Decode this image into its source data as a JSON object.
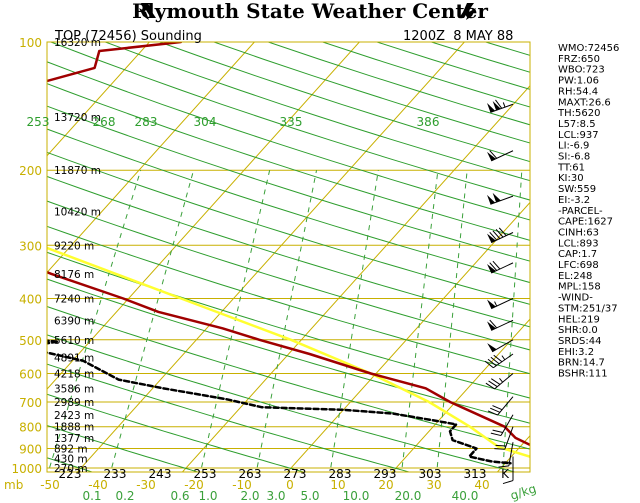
{
  "header": {
    "title": "Plymouth State Weather Center"
  },
  "chart_data": {
    "type": "skew-t",
    "title": "TOP (72456) Sounding",
    "datetime": "1200Z  8 MAY 88",
    "pressure_ticks": [
      {
        "p": 100,
        "label": "100"
      },
      {
        "p": 200,
        "label": "200"
      },
      {
        "p": 300,
        "label": "300"
      },
      {
        "p": 400,
        "label": "400"
      },
      {
        "p": 500,
        "label": "500"
      },
      {
        "p": 600,
        "label": "600"
      },
      {
        "p": 700,
        "label": "700"
      },
      {
        "p": 800,
        "label": "800"
      },
      {
        "p": 900,
        "label": "900"
      },
      {
        "p": 1000,
        "label": "1000"
      }
    ],
    "pressure_unit": "mb",
    "height_labels": [
      {
        "p": 100,
        "label": "16320 m"
      },
      {
        "p": 150,
        "label": "13720 m"
      },
      {
        "p": 200,
        "label": "11870 m"
      },
      {
        "p": 250,
        "label": "10420 m"
      },
      {
        "p": 300,
        "label": "9220 m"
      },
      {
        "p": 350,
        "label": "8176 m"
      },
      {
        "p": 400,
        "label": "7240 m"
      },
      {
        "p": 450,
        "label": "6390 m"
      },
      {
        "p": 500,
        "label": "5610 m"
      },
      {
        "p": 550,
        "label": "4891 m"
      },
      {
        "p": 600,
        "label": "4218 m"
      },
      {
        "p": 650,
        "label": "3586 m"
      },
      {
        "p": 700,
        "label": "2989 m"
      },
      {
        "p": 750,
        "label": "2423 m"
      },
      {
        "p": 800,
        "label": "1888 m"
      },
      {
        "p": 850,
        "label": "1377 m"
      },
      {
        "p": 900,
        "label": "892 m"
      },
      {
        "p": 950,
        "label": "430 m"
      },
      {
        "p": 1000,
        "label": "270 m"
      }
    ],
    "temp_c_labels": [
      "-50",
      "-40",
      "-30",
      "-20",
      "-10",
      "0",
      "10",
      "20",
      "30",
      "40"
    ],
    "temp_k_labels": [
      "223",
      "233",
      "243",
      "253",
      "263",
      "273",
      "283",
      "293",
      "303",
      "313",
      "K"
    ],
    "mixing_ratio_labels": [
      "0.1",
      "0.2",
      "0.6",
      "1.0",
      "2.0",
      "3.0",
      "5.0",
      "10.0",
      "20.0",
      "40.0"
    ],
    "mixing_ratio_unit": "g/kg",
    "theta_labels": [
      "253",
      "268",
      "283",
      "304",
      "335",
      "386"
    ],
    "temperature_profile": [
      {
        "p": 100,
        "t": -47
      },
      {
        "p": 105,
        "t": -54
      },
      {
        "p": 115,
        "t": -53
      },
      {
        "p": 125,
        "t": -57
      },
      {
        "p": 140,
        "t": -56
      },
      {
        "p": 150,
        "t": -62
      },
      {
        "p": 158,
        "t": -64
      },
      {
        "p": 168,
        "t": -64
      },
      {
        "p": 185,
        "t": -66
      },
      {
        "p": 200,
        "t": -64
      },
      {
        "p": 230,
        "t": -61
      },
      {
        "p": 260,
        "t": -57
      },
      {
        "p": 300,
        "t": -49
      },
      {
        "p": 350,
        "t": -39.5
      },
      {
        "p": 400,
        "t": -30.5
      },
      {
        "p": 430,
        "t": -26
      },
      {
        "p": 470,
        "t": -18.5
      },
      {
        "p": 500,
        "t": -14
      },
      {
        "p": 540,
        "t": -8
      },
      {
        "p": 600,
        "t": -0.5
      },
      {
        "p": 650,
        "t": 6
      },
      {
        "p": 700,
        "t": 9.5
      },
      {
        "p": 760,
        "t": 14
      },
      {
        "p": 800,
        "t": 16.8
      },
      {
        "p": 850,
        "t": 18.8
      },
      {
        "p": 900,
        "t": 21.8
      },
      {
        "p": 950,
        "t": 24.2
      },
      {
        "p": 975,
        "t": 24.5
      }
    ],
    "dewpoint_profile": [
      {
        "p": 355,
        "t": -69
      },
      {
        "p": 380,
        "t": -65
      },
      {
        "p": 410,
        "t": -56
      },
      {
        "p": 430,
        "t": -52
      },
      {
        "p": 445,
        "t": -44
      },
      {
        "p": 460,
        "t": -39
      },
      {
        "p": 470,
        "t": -42
      },
      {
        "p": 480,
        "t": -37
      },
      {
        "p": 490,
        "t": -41
      },
      {
        "p": 505,
        "t": -33
      },
      {
        "p": 520,
        "t": -36
      },
      {
        "p": 560,
        "t": -29
      },
      {
        "p": 620,
        "t": -24
      },
      {
        "p": 650,
        "t": -19
      },
      {
        "p": 690,
        "t": -12
      },
      {
        "p": 720,
        "t": -8
      },
      {
        "p": 730,
        "t": 0
      },
      {
        "p": 745,
        "t": 5
      },
      {
        "p": 770,
        "t": 9
      },
      {
        "p": 790,
        "t": 12
      },
      {
        "p": 820,
        "t": 12
      },
      {
        "p": 860,
        "t": 13
      },
      {
        "p": 900,
        "t": 16
      },
      {
        "p": 940,
        "t": 16
      },
      {
        "p": 965,
        "t": 18.5
      },
      {
        "p": 975,
        "t": 20.5
      }
    ],
    "parcel_profile": [
      {
        "p": 975,
        "t": 24.4
      },
      {
        "p": 893,
        "t": 18
      },
      {
        "p": 800,
        "t": 13.5
      },
      {
        "p": 700,
        "t": 7.5
      },
      {
        "p": 600,
        "t": -0.5
      },
      {
        "p": 500,
        "t": -11
      },
      {
        "p": 400,
        "t": -25
      },
      {
        "p": 300,
        "t": -43
      },
      {
        "p": 250,
        "t": -54.5
      },
      {
        "p": 200,
        "t": -68
      },
      {
        "p": 150,
        "t": -84
      },
      {
        "p": 120,
        "t": -94
      }
    ],
    "wind_barbs": [
      {
        "p": 140,
        "dir": 250,
        "speed": 115
      },
      {
        "p": 180,
        "dir": 245,
        "speed": 60
      },
      {
        "p": 230,
        "dir": 250,
        "speed": 100
      },
      {
        "p": 280,
        "dir": 245,
        "speed": 90
      },
      {
        "p": 330,
        "dir": 245,
        "speed": 70
      },
      {
        "p": 400,
        "dir": 245,
        "speed": 55
      },
      {
        "p": 450,
        "dir": 245,
        "speed": 60
      },
      {
        "p": 500,
        "dir": 240,
        "speed": 50
      },
      {
        "p": 540,
        "dir": 235,
        "speed": 45
      },
      {
        "p": 600,
        "dir": 230,
        "speed": 35
      },
      {
        "p": 680,
        "dir": 220,
        "speed": 30
      },
      {
        "p": 750,
        "dir": 210,
        "speed": 20
      },
      {
        "p": 800,
        "dir": 200,
        "speed": 20
      },
      {
        "p": 870,
        "dir": 190,
        "speed": 15
      },
      {
        "p": 940,
        "dir": 180,
        "speed": 10
      }
    ],
    "indices": [
      "WMO:72456",
      "FRZ:650",
      "WBO:723",
      "PW:1.06",
      "RH:54.4",
      "MAXT:26.6",
      "TH:5620",
      "L57:8.5",
      "LCL:937",
      "LI:-6.9",
      "SI:-6.8",
      "TT:61",
      "KI:30",
      "SW:559",
      "EI:-3.2",
      "-PARCEL-",
      "CAPE:1627",
      "CINH:63",
      "LCL:893",
      "CAP:1.7",
      "LFC:698",
      "EL:248",
      "MPL:158",
      "-WIND-",
      "STM:251/37",
      "HEL:219",
      "SHR:0.0",
      "SRDS:44",
      "EHI:3.2",
      "BRN:14.7",
      "BSHR:111"
    ],
    "colors": {
      "grid": "#c8b000",
      "dry_adiabat": "#2e9e2e",
      "mixing_ratio": "#3aa03a",
      "temperature": "#a00000",
      "dewpoint": "#000000",
      "parcel": "#ffff30",
      "text": "#000000"
    }
  }
}
